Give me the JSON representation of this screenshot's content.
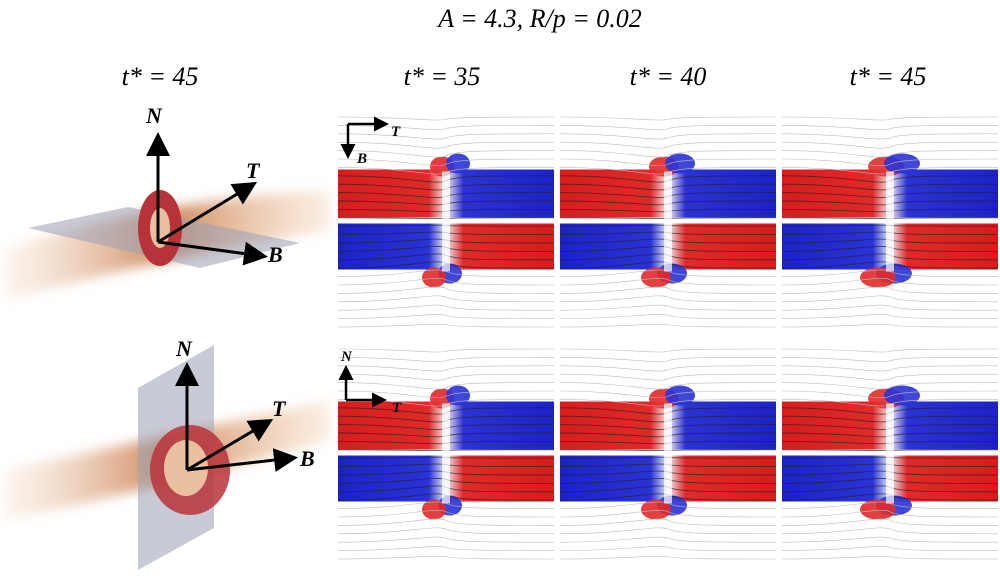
{
  "title": "A = 4.3, R/p = 0.02",
  "columns": [
    "t* = 45",
    "t* = 35",
    "t* = 40",
    "t* = 45"
  ],
  "rows": [
    {
      "axes": [
        "N",
        "T",
        "B"
      ],
      "inset_axes": [
        "T",
        "B"
      ]
    },
    {
      "axes": [
        "N",
        "T",
        "B"
      ],
      "inset_axes": [
        "N",
        "T"
      ]
    }
  ]
}
